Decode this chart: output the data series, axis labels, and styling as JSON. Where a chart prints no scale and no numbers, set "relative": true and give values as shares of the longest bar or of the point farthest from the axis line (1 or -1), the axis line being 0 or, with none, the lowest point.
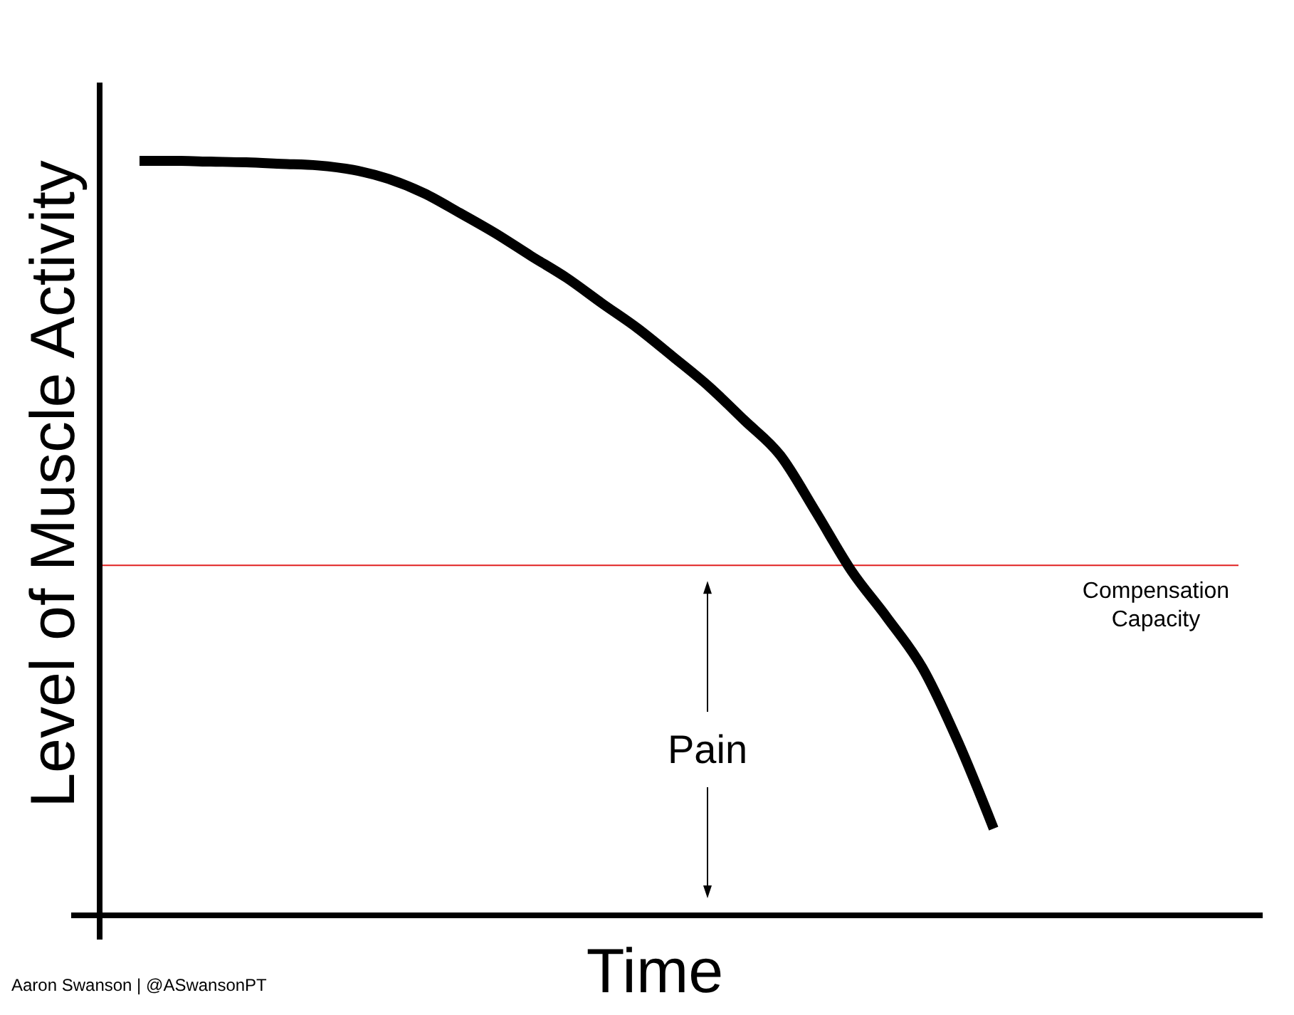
{
  "chart_data": {
    "type": "line",
    "relative": true,
    "xlabel": "Time",
    "ylabel": "Level of Muscle Activity",
    "categories": [
      null,
      null,
      null,
      null,
      null,
      null,
      null,
      null,
      null,
      null,
      null,
      null,
      null,
      null,
      null,
      null,
      null,
      null,
      null,
      null,
      null,
      null,
      null,
      null,
      null,
      null,
      null,
      null,
      null,
      null,
      null,
      null
    ],
    "series": [
      {
        "color": "#000000",
        "values": [
          1.0,
          1.0,
          0.999,
          0.998,
          0.996,
          0.994,
          0.988,
          0.976,
          0.957,
          0.931,
          0.904,
          0.874,
          0.845,
          0.811,
          0.778,
          0.74,
          0.701,
          0.656,
          0.61,
          0.535,
          0.457,
          0.395,
          0.328,
          0.23,
          0.115,
          null,
          null,
          null,
          null,
          null,
          null,
          null
        ]
      }
    ],
    "ref_lines": [
      {
        "axis": "y",
        "value": 0.464,
        "label": "Compensation Capacity",
        "color": "#e02020"
      }
    ],
    "annotations": [
      "Pain",
      "Aaron Swanson | @ASwansonPT"
    ],
    "marker": "none",
    "line_style": "solid",
    "grid": false
  }
}
